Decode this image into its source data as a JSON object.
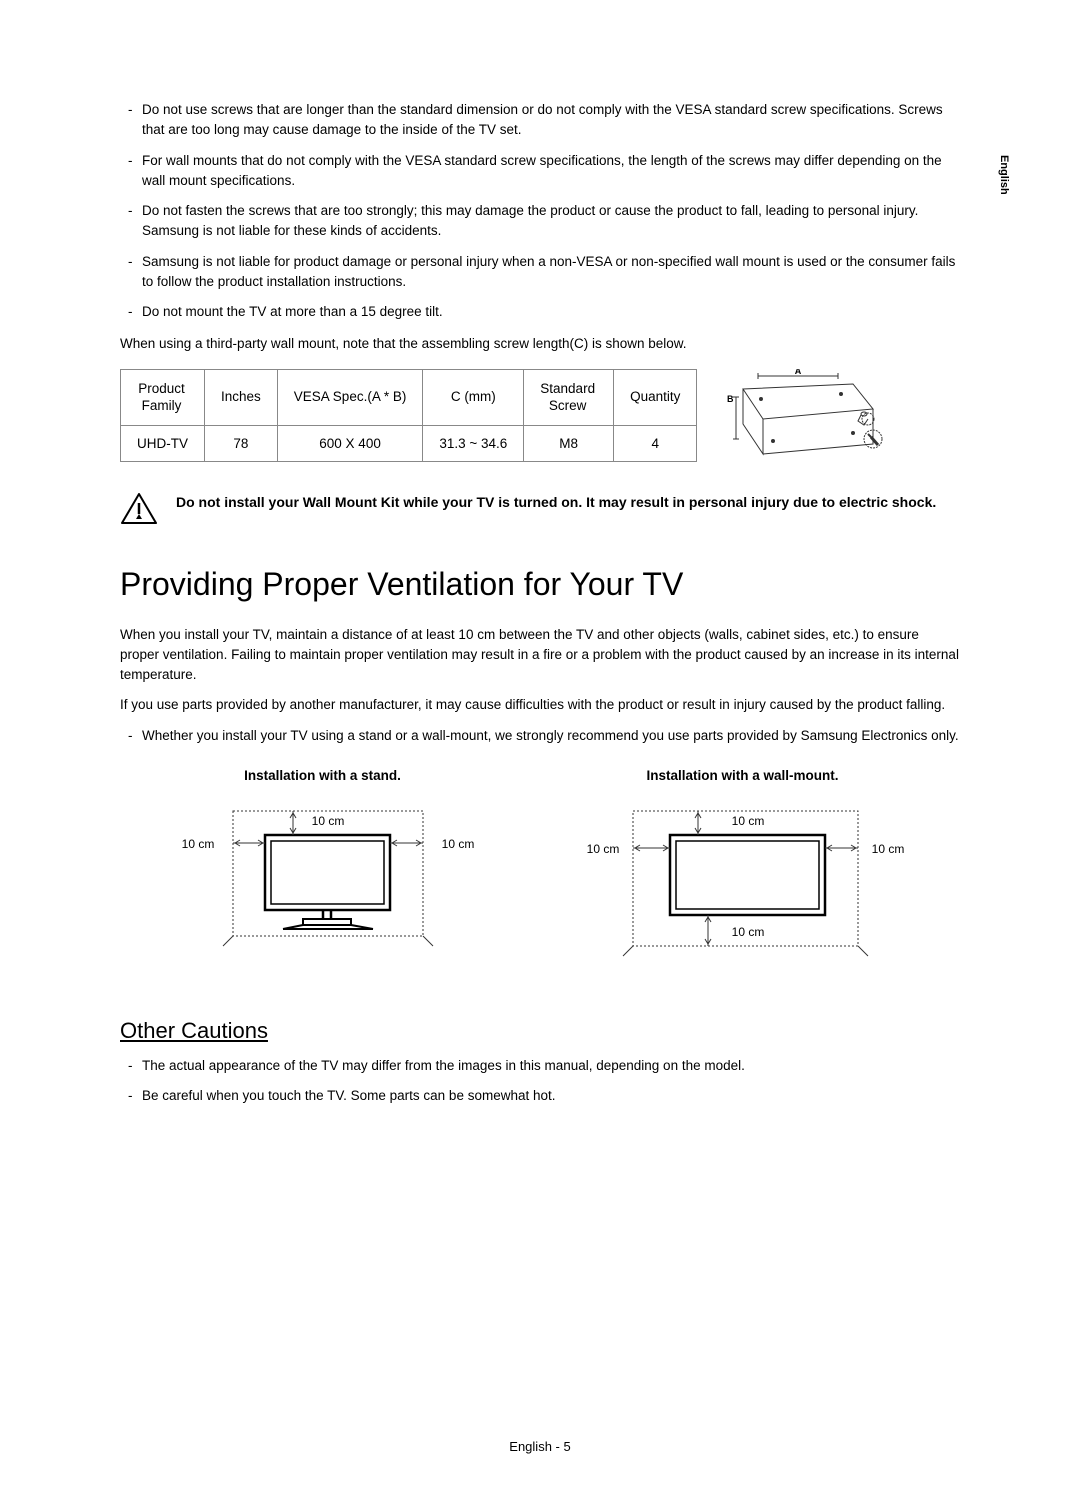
{
  "sideTab": "English",
  "topNotes": [
    "Do not use screws that are longer than the standard dimension or do not comply with the VESA standard screw specifications. Screws that are too long may cause damage to the inside of the TV set.",
    "For wall mounts that do not comply with the VESA standard screw specifications, the length of the screws may differ depending on the wall mount specifications.",
    "Do not fasten the screws that are too strongly; this may damage the product or cause the product to fall, leading to personal injury. Samsung is not liable for these kinds of accidents.",
    "Samsung is not liable for product damage or personal injury when a non-VESA or non-specified wall mount is used or the consumer fails to follow the product installation instructions.",
    "Do not mount the TV at more than a 15 degree tilt."
  ],
  "tableIntro": "When using a third-party wall mount, note that the assembling screw length(C) is shown below.",
  "table": {
    "headers": [
      "Product\nFamily",
      "Inches",
      "VESA Spec.(A * B)",
      "C (mm)",
      "Standard\nScrew",
      "Quantity"
    ],
    "row": [
      "UHD-TV",
      "78",
      "600 X 400",
      "31.3 ~ 34.6",
      "M8",
      "4"
    ]
  },
  "vesaDiagram": {
    "labelA": "A",
    "labelB": "B"
  },
  "warning": "Do not install your Wall Mount Kit while your TV is turned on. It may result in personal injury due to electric shock.",
  "heading1": "Providing Proper Ventilation for Your TV",
  "ventilationParas": [
    "When you install your TV, maintain a distance of at least 10 cm between the TV and other objects (walls, cabinet sides, etc.) to ensure proper ventilation. Failing to maintain proper ventilation may result in a fire or a problem with the product caused by an increase in its internal temperature.",
    "If you use parts provided by another manufacturer, it may cause difficulties with the product or result in injury caused by the product falling."
  ],
  "ventilationNote": "Whether you install your TV using a stand or a wall-mount, we strongly recommend you use parts provided by Samsung Electronics only.",
  "install": {
    "standCaption": "Installation with a stand.",
    "wallCaption": "Installation with a wall-mount.",
    "gap": "10 cm"
  },
  "heading2": "Other Cautions",
  "cautions": [
    "The actual appearance of the TV may differ from the images in this manual, depending on the model.",
    "Be careful when you touch the TV. Some parts can be somewhat hot."
  ],
  "footer": "English - 5",
  "colors": {
    "text": "#000000",
    "border": "#888888",
    "diagramLine": "#333333"
  }
}
